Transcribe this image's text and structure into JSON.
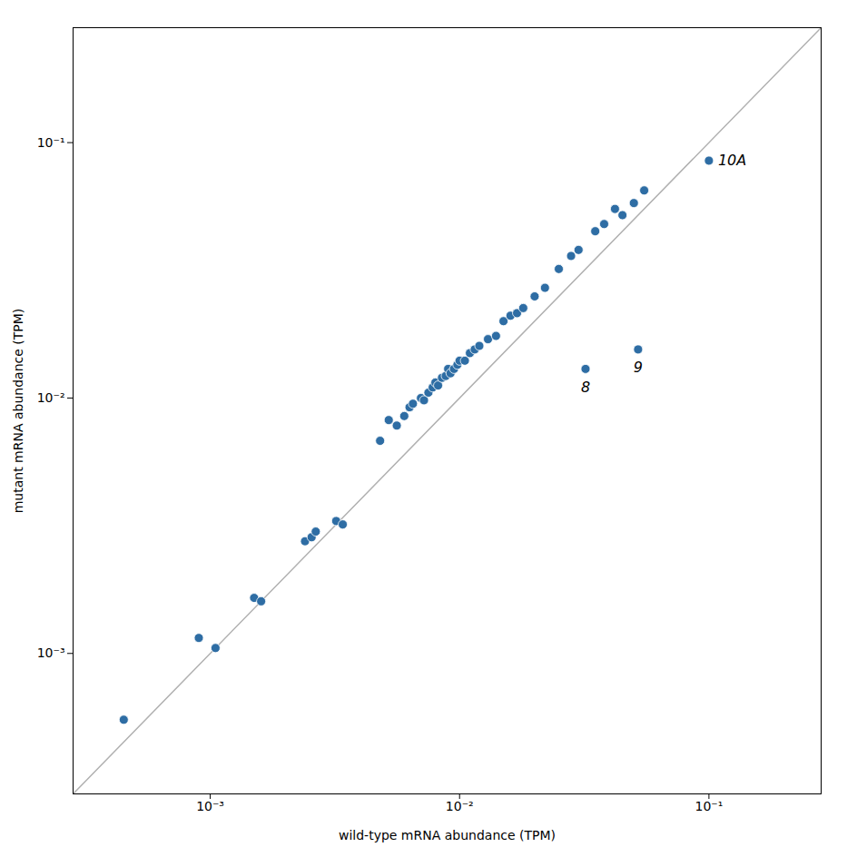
{
  "chart_data": {
    "type": "scatter",
    "xlabel": "wild-type mRNA abundance (TPM)",
    "ylabel": "mutant mRNA abundance (TPM)",
    "log": true,
    "grid": false,
    "xlim": [
      0.0002818382931264454,
      0.2818382931264454
    ],
    "ylim": [
      0.0002818382931264454,
      0.2818382931264454
    ],
    "xticks": [
      {
        "value": 0.001,
        "label": "10⁻³"
      },
      {
        "value": 0.01,
        "label": "10⁻²"
      },
      {
        "value": 0.1,
        "label": "10⁻¹"
      }
    ],
    "yticks": [
      {
        "value": 0.001,
        "label": "10⁻³"
      },
      {
        "value": 0.01,
        "label": "10⁻²"
      },
      {
        "value": 0.1,
        "label": "10⁻¹"
      }
    ],
    "series": [
      {
        "type": "line",
        "color": "#b0b0b0",
        "x": [
          0.0002818382931264454,
          0.2818382931264454
        ],
        "values": [
          0.0002818382931264454,
          0.2818382931264454
        ]
      },
      {
        "type": "scatter",
        "color": "#2e6da4",
        "x": [
          0.00045,
          0.0009,
          0.00105,
          0.0015,
          0.0016,
          0.0024,
          0.00255,
          0.00265,
          0.0032,
          0.0034,
          0.0048,
          0.0052,
          0.0056,
          0.006,
          0.0063,
          0.0065,
          0.007,
          0.0072,
          0.0075,
          0.0078,
          0.008,
          0.0082,
          0.0085,
          0.0088,
          0.009,
          0.0092,
          0.0095,
          0.0098,
          0.01,
          0.0105,
          0.011,
          0.0115,
          0.012,
          0.013,
          0.014,
          0.015,
          0.016,
          0.017,
          0.018,
          0.02,
          0.022,
          0.025,
          0.028,
          0.03,
          0.035,
          0.038,
          0.042,
          0.045,
          0.05,
          0.055,
          0.032,
          0.052,
          0.1
        ],
        "values": [
          0.00055,
          0.00115,
          0.00105,
          0.00165,
          0.0016,
          0.00275,
          0.00285,
          0.003,
          0.0033,
          0.0032,
          0.0068,
          0.0082,
          0.0078,
          0.0085,
          0.0092,
          0.0095,
          0.01,
          0.0098,
          0.0105,
          0.011,
          0.0115,
          0.0112,
          0.012,
          0.0122,
          0.013,
          0.0125,
          0.013,
          0.0135,
          0.014,
          0.014,
          0.015,
          0.0155,
          0.016,
          0.017,
          0.0175,
          0.02,
          0.021,
          0.0215,
          0.0225,
          0.025,
          0.027,
          0.032,
          0.036,
          0.038,
          0.045,
          0.048,
          0.055,
          0.052,
          0.058,
          0.065,
          0.013,
          0.0155,
          0.085
        ]
      }
    ],
    "annotations": [
      {
        "text": "8",
        "x": 0.032,
        "y": 0.013
      },
      {
        "text": "9",
        "x": 0.052,
        "y": 0.0155
      },
      {
        "text": "10A",
        "x": 0.1,
        "y": 0.085
      }
    ]
  }
}
